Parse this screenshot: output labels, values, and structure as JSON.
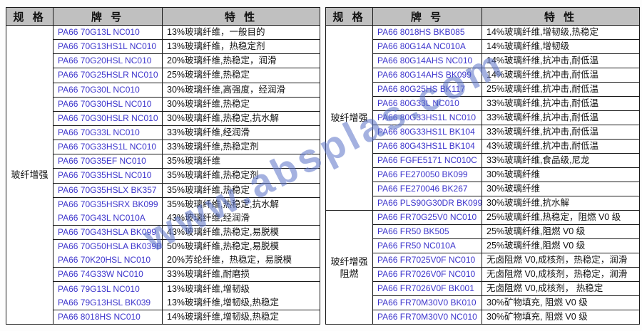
{
  "watermark": {
    "text": "www.absplas.com",
    "color": "#5a73c8"
  },
  "colors": {
    "header_bg": "#c0c0c0",
    "grade_text": "#3d35cc",
    "border": "#1a1a1a"
  },
  "tables": [
    {
      "headers": [
        "规 格",
        "牌 号",
        "特 性"
      ],
      "groups": [
        {
          "label_lines": [
            "玻纤增强"
          ],
          "start": 0,
          "span": 21
        }
      ],
      "rows": [
        {
          "grade": "PA66 70G13L NC010",
          "feature": "13%玻璃纤维，一般目的",
          "merged_top": false
        },
        {
          "grade": "PA66 70G13HS1L NC010",
          "feature": "13%玻璃纤维，热稳定剂",
          "merged_top": false
        },
        {
          "grade": "PA66 70G20HSL NC010",
          "feature": "20%玻璃纤维,热稳定，润滑",
          "merged_top": false
        },
        {
          "grade": "PA66 70G25HSLR NC010",
          "feature": "25%玻璃纤维,热稳定",
          "merged_top": false
        },
        {
          "grade": "PA66 70G30L NC010",
          "feature": "30%玻璃纤维,高强度，经润滑",
          "merged_top": false
        },
        {
          "grade": "PA66 70G30HSL NC010",
          "feature": "30%玻璃纤维,热稳定",
          "merged_top": false
        },
        {
          "grade": "PA66 70G30HSLR NC010",
          "feature": "30%玻璃纤维,热稳定,抗水解",
          "merged_top": false
        },
        {
          "grade": "PA66 70G33L NC010",
          "feature": "33%玻璃纤维,经润滑",
          "merged_top": false
        },
        {
          "grade": "PA66 70G33HS1L NC010",
          "feature": "33%玻璃纤维,热稳定剂",
          "merged_top": false
        },
        {
          "grade": "PA66 70G35EF NC010",
          "feature": "35%玻璃纤维",
          "merged_top": false
        },
        {
          "grade": "PA66 70G35HSL NC010",
          "feature": "35%玻璃纤维,热稳定剂",
          "merged_top": false
        },
        {
          "grade": "PA66 70G35HSLX BK357",
          "feature": "35%玻璃纤维,热稳定",
          "merged_top": false
        },
        {
          "grade": "PA66 70G35HSRX BK099",
          "feature": "35%玻璃纤维,热稳定,抗水解",
          "merged_top": false
        },
        {
          "grade": "PA66 70G43L NC010A",
          "feature": "43%玻璃纤维,经润滑",
          "merged_top": true
        },
        {
          "grade": "PA66 70G43HSLA BK099",
          "feature": "43%玻璃纤维,热稳定,易脱模",
          "merged_top": false
        },
        {
          "grade": "PA66 70G50HSLA BK039B",
          "feature": "50%玻璃纤维,热稳定,易脱模",
          "merged_top": false
        },
        {
          "grade": "PA66 70K20HSL NC010",
          "feature": "20%芳纶纤维，热稳定，易脱模",
          "merged_top": true
        },
        {
          "grade": "PA66 74G33W NC010",
          "feature": "33%玻璃纤维,耐磨损",
          "merged_top": false
        },
        {
          "grade": "PA66 79G13L NC010",
          "feature": "13%玻璃纤维,增韧级",
          "merged_top": false
        },
        {
          "grade": "PA66 79G13HSL BK039",
          "feature": "13%玻璃纤维,增韧级,热稳定",
          "merged_top": true
        },
        {
          "grade": "PA66 8018HS NC010",
          "feature": "14%玻璃纤维,增韧级,热稳定",
          "merged_top": false
        }
      ]
    },
    {
      "headers": [
        "规 格",
        "牌 号",
        "特 性"
      ],
      "groups": [
        {
          "label_lines": [
            "玻纤增强"
          ],
          "start": 0,
          "span": 13
        },
        {
          "label_lines": [
            "玻纤增强",
            "阻燃"
          ],
          "start": 13,
          "span": 8
        }
      ],
      "rows": [
        {
          "grade": "PA66 8018HS BKB085",
          "feature": "14%玻璃纤维,增韧级,热稳定",
          "merged_top": false
        },
        {
          "grade": "PA66 80G14A NC010A",
          "feature": "14%玻璃纤维,增韧级",
          "merged_top": false
        },
        {
          "grade": "PA66 80G14AHS NC010",
          "feature": "14%玻璃纤维,抗冲击,耐低温",
          "merged_top": false
        },
        {
          "grade": "PA66 80G14AHS BK099",
          "feature": "14%玻璃纤维,抗冲击,耐低温",
          "merged_top": false
        },
        {
          "grade": "PA66 80G25HS BK117",
          "feature": "25%玻璃纤维,抗冲击,耐低温",
          "merged_top": false
        },
        {
          "grade": "PA66 80G33L NC010",
          "feature": "33%玻璃纤维,抗冲击,耐低温",
          "merged_top": false
        },
        {
          "grade": "PA66 80G33HS1L NC010",
          "feature": "33%玻璃纤维,抗冲击,耐低温",
          "merged_top": false
        },
        {
          "grade": "PA66 80G33HS1L BK104",
          "feature": "33%玻璃纤维,抗冲击,耐低温",
          "merged_top": false
        },
        {
          "grade": "PA66 80G43HS1L BK104",
          "feature": "43%玻璃纤维,抗冲击,耐低温",
          "merged_top": false
        },
        {
          "grade": "PA66 FGFE5171 NC010C",
          "feature": "33%玻璃纤维,食品级,尼龙",
          "merged_top": false
        },
        {
          "grade": "PA66 FE270050 BK099",
          "feature": "30%玻璃纤维",
          "merged_top": false
        },
        {
          "grade": "PA66 FE270046 BK267",
          "feature": "30%玻璃纤维",
          "merged_top": false
        },
        {
          "grade": "PA66 PLS90G30DR BK099",
          "feature": "30%玻璃纤维,抗水解",
          "merged_top": false
        },
        {
          "grade": "PA66 FR70G25V0 NC010",
          "feature": "25%玻璃纤维,热稳定，阻燃 V0 级",
          "merged_top": false
        },
        {
          "grade": "PA66 FR50 BK505",
          "feature": "25%玻璃纤维,阻燃 V0 级",
          "merged_top": false
        },
        {
          "grade": "PA66 FR50 NC010A",
          "feature": "25%玻璃纤维,阻燃 V0 级",
          "merged_top": false
        },
        {
          "grade": "PA66 FR7025V0F NC010",
          "feature": "无卤阻燃 V0,成核剂，热稳定，润滑",
          "merged_top": false
        },
        {
          "grade": "PA66 FR7026V0F NC010",
          "feature": "无卤阻燃 V0,成核剂，热稳定，润滑",
          "merged_top": false
        },
        {
          "grade": "PA66 FR7026V0F BK001",
          "feature": "无卤阻燃 V0,成核剂， 热稳定",
          "merged_top": false
        },
        {
          "grade": "PA66 FR70M30V0 BK010",
          "feature": "30%矿物填充, 阻燃 V0 级",
          "merged_top": false
        },
        {
          "grade": "PA66 FR70M30V0 NC010",
          "feature": "30%矿物填充, 阻燃 V0 级",
          "merged_top": false
        }
      ]
    }
  ]
}
